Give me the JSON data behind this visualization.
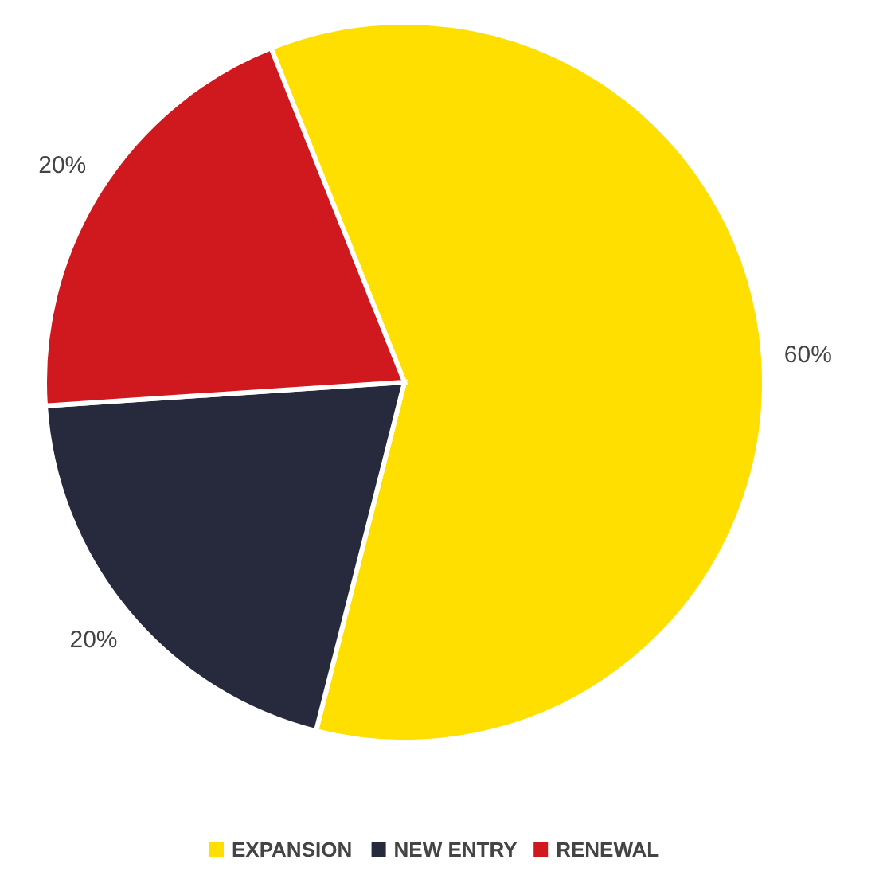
{
  "chart_data": {
    "type": "pie",
    "categories": [
      "EXPANSION",
      "NEW ENTRY",
      "RENEWAL"
    ],
    "values": [
      60,
      20,
      20
    ],
    "colors": [
      "#ffdf00",
      "#272a3c",
      "#d0181f"
    ],
    "value_labels": [
      "60%",
      "20%",
      "20%"
    ],
    "legend": "bottom"
  }
}
